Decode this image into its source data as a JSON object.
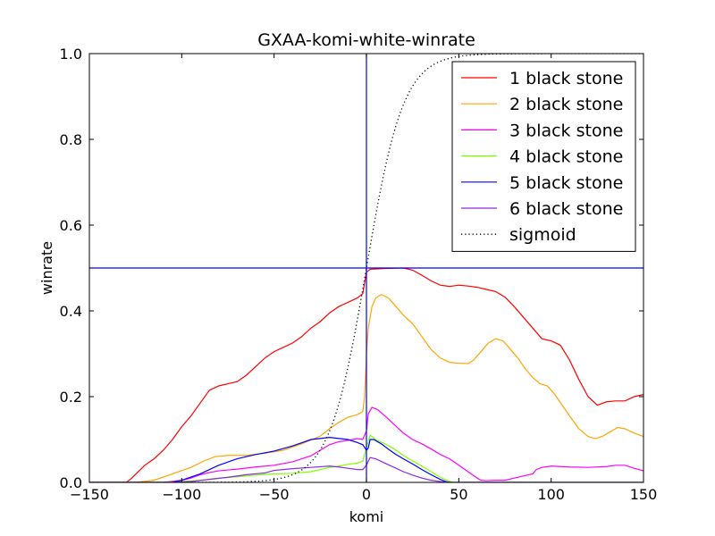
{
  "chart_data": {
    "type": "line",
    "title": "GXAA-komi-white-winrate",
    "xlabel": "komi",
    "ylabel": "winrate",
    "xlim": [
      -150,
      150
    ],
    "ylim": [
      0,
      1
    ],
    "x_ticks": [
      "−150",
      "−100",
      "−50",
      "0",
      "50",
      "100",
      "150"
    ],
    "y_ticks": [
      "0.0",
      "0.2",
      "0.4",
      "0.6",
      "0.8",
      "1.0"
    ],
    "grid": false,
    "legend_position": "top-right",
    "reference_lines": [
      {
        "orientation": "vertical",
        "value": 0,
        "color": "#0000ff"
      },
      {
        "orientation": "horizontal",
        "value": 0.5,
        "color": "#0000ff"
      }
    ],
    "series": [
      {
        "name": "1 black stone",
        "color": "#ff0000",
        "style": "solid",
        "points": [
          [
            -150,
            0
          ],
          [
            -130,
            0
          ],
          [
            -127,
            0.01
          ],
          [
            -120,
            0.04
          ],
          [
            -115,
            0.055
          ],
          [
            -110,
            0.075
          ],
          [
            -105,
            0.1
          ],
          [
            -100,
            0.13
          ],
          [
            -95,
            0.155
          ],
          [
            -90,
            0.185
          ],
          [
            -85,
            0.215
          ],
          [
            -80,
            0.225
          ],
          [
            -75,
            0.23
          ],
          [
            -70,
            0.235
          ],
          [
            -65,
            0.25
          ],
          [
            -60,
            0.27
          ],
          [
            -55,
            0.29
          ],
          [
            -50,
            0.305
          ],
          [
            -45,
            0.315
          ],
          [
            -40,
            0.325
          ],
          [
            -35,
            0.34
          ],
          [
            -30,
            0.36
          ],
          [
            -25,
            0.375
          ],
          [
            -20,
            0.395
          ],
          [
            -15,
            0.41
          ],
          [
            -10,
            0.42
          ],
          [
            -5,
            0.43
          ],
          [
            -2,
            0.44
          ],
          [
            0,
            0.49
          ],
          [
            2,
            0.497
          ],
          [
            10,
            0.499
          ],
          [
            20,
            0.5
          ],
          [
            25,
            0.495
          ],
          [
            30,
            0.483
          ],
          [
            35,
            0.47
          ],
          [
            40,
            0.46
          ],
          [
            45,
            0.457
          ],
          [
            50,
            0.46
          ],
          [
            55,
            0.458
          ],
          [
            60,
            0.455
          ],
          [
            65,
            0.45
          ],
          [
            70,
            0.445
          ],
          [
            75,
            0.432
          ],
          [
            80,
            0.41
          ],
          [
            85,
            0.385
          ],
          [
            90,
            0.36
          ],
          [
            95,
            0.335
          ],
          [
            100,
            0.33
          ],
          [
            105,
            0.32
          ],
          [
            110,
            0.285
          ],
          [
            115,
            0.24
          ],
          [
            120,
            0.2
          ],
          [
            125,
            0.18
          ],
          [
            130,
            0.188
          ],
          [
            135,
            0.19
          ],
          [
            140,
            0.19
          ],
          [
            145,
            0.2
          ],
          [
            150,
            0.205
          ]
        ]
      },
      {
        "name": "2 black stone",
        "color": "#ffa500",
        "style": "solid",
        "points": [
          [
            -150,
            0
          ],
          [
            -125,
            0
          ],
          [
            -115,
            0.005
          ],
          [
            -105,
            0.02
          ],
          [
            -95,
            0.035
          ],
          [
            -88,
            0.05
          ],
          [
            -82,
            0.06
          ],
          [
            -75,
            0.063
          ],
          [
            -65,
            0.063
          ],
          [
            -55,
            0.068
          ],
          [
            -45,
            0.075
          ],
          [
            -35,
            0.09
          ],
          [
            -25,
            0.108
          ],
          [
            -20,
            0.125
          ],
          [
            -15,
            0.14
          ],
          [
            -10,
            0.152
          ],
          [
            -5,
            0.158
          ],
          [
            -2,
            0.165
          ],
          [
            -1,
            0.2
          ],
          [
            0,
            0.3
          ],
          [
            1,
            0.36
          ],
          [
            3,
            0.41
          ],
          [
            5,
            0.43
          ],
          [
            8,
            0.438
          ],
          [
            12,
            0.43
          ],
          [
            16,
            0.41
          ],
          [
            20,
            0.39
          ],
          [
            25,
            0.37
          ],
          [
            30,
            0.34
          ],
          [
            35,
            0.31
          ],
          [
            40,
            0.29
          ],
          [
            45,
            0.28
          ],
          [
            50,
            0.278
          ],
          [
            55,
            0.277
          ],
          [
            58,
            0.285
          ],
          [
            62,
            0.305
          ],
          [
            66,
            0.325
          ],
          [
            70,
            0.335
          ],
          [
            74,
            0.33
          ],
          [
            78,
            0.31
          ],
          [
            82,
            0.29
          ],
          [
            86,
            0.265
          ],
          [
            90,
            0.245
          ],
          [
            94,
            0.23
          ],
          [
            98,
            0.225
          ],
          [
            102,
            0.205
          ],
          [
            106,
            0.18
          ],
          [
            110,
            0.155
          ],
          [
            115,
            0.125
          ],
          [
            120,
            0.107
          ],
          [
            124,
            0.102
          ],
          [
            128,
            0.108
          ],
          [
            132,
            0.118
          ],
          [
            136,
            0.128
          ],
          [
            140,
            0.125
          ],
          [
            145,
            0.115
          ],
          [
            150,
            0.107
          ]
        ]
      },
      {
        "name": "3 black stone",
        "color": "#ff00ff",
        "style": "solid",
        "points": [
          [
            -150,
            0
          ],
          [
            -110,
            0
          ],
          [
            -100,
            0.005
          ],
          [
            -95,
            0.01
          ],
          [
            -90,
            0.018
          ],
          [
            -85,
            0.023
          ],
          [
            -80,
            0.027
          ],
          [
            -70,
            0.031
          ],
          [
            -60,
            0.036
          ],
          [
            -50,
            0.04
          ],
          [
            -40,
            0.048
          ],
          [
            -30,
            0.062
          ],
          [
            -25,
            0.075
          ],
          [
            -20,
            0.088
          ],
          [
            -15,
            0.095
          ],
          [
            -10,
            0.098
          ],
          [
            -5,
            0.102
          ],
          [
            -2,
            0.1
          ],
          [
            0,
            0.12
          ],
          [
            1,
            0.16
          ],
          [
            3,
            0.175
          ],
          [
            6,
            0.17
          ],
          [
            10,
            0.155
          ],
          [
            15,
            0.135
          ],
          [
            20,
            0.115
          ],
          [
            25,
            0.1
          ],
          [
            30,
            0.09
          ],
          [
            35,
            0.078
          ],
          [
            40,
            0.065
          ],
          [
            45,
            0.055
          ],
          [
            50,
            0.04
          ],
          [
            55,
            0.025
          ],
          [
            60,
            0.01
          ],
          [
            62,
            0.005
          ],
          [
            65,
            0.004
          ],
          [
            70,
            0.005
          ],
          [
            75,
            0.005
          ],
          [
            80,
            0.01
          ],
          [
            85,
            0.015
          ],
          [
            90,
            0.02
          ],
          [
            92,
            0.03
          ],
          [
            95,
            0.035
          ],
          [
            100,
            0.038
          ],
          [
            110,
            0.036
          ],
          [
            120,
            0.035
          ],
          [
            130,
            0.037
          ],
          [
            135,
            0.04
          ],
          [
            140,
            0.04
          ],
          [
            145,
            0.033
          ],
          [
            150,
            0.027
          ]
        ]
      },
      {
        "name": "4 black stone",
        "color": "#7fff00",
        "style": "solid",
        "points": [
          [
            -150,
            0
          ],
          [
            -110,
            0
          ],
          [
            -100,
            0.002
          ],
          [
            -90,
            0.005
          ],
          [
            -80,
            0.01
          ],
          [
            -70,
            0.013
          ],
          [
            -60,
            0.017
          ],
          [
            -50,
            0.02
          ],
          [
            -40,
            0.021
          ],
          [
            -30,
            0.025
          ],
          [
            -20,
            0.035
          ],
          [
            -15,
            0.038
          ],
          [
            -10,
            0.042
          ],
          [
            -5,
            0.045
          ],
          [
            -2,
            0.05
          ],
          [
            0,
            0.08
          ],
          [
            2,
            0.11
          ],
          [
            5,
            0.1
          ],
          [
            10,
            0.09
          ],
          [
            15,
            0.078
          ],
          [
            20,
            0.063
          ],
          [
            25,
            0.05
          ],
          [
            30,
            0.038
          ],
          [
            35,
            0.025
          ],
          [
            40,
            0.012
          ],
          [
            44,
            0.004
          ],
          [
            47,
            0
          ],
          [
            150,
            0
          ]
        ]
      },
      {
        "name": "5 black stone",
        "color": "#0000ff",
        "style": "solid",
        "points": [
          [
            -150,
            0
          ],
          [
            -105,
            0
          ],
          [
            -100,
            0.005
          ],
          [
            -90,
            0.02
          ],
          [
            -80,
            0.04
          ],
          [
            -70,
            0.055
          ],
          [
            -60,
            0.065
          ],
          [
            -50,
            0.073
          ],
          [
            -40,
            0.085
          ],
          [
            -30,
            0.1
          ],
          [
            -20,
            0.105
          ],
          [
            -10,
            0.1
          ],
          [
            -5,
            0.093
          ],
          [
            -2,
            0.088
          ],
          [
            0,
            0.075
          ],
          [
            1,
            0.08
          ],
          [
            2,
            0.1
          ],
          [
            4,
            0.1
          ],
          [
            8,
            0.09
          ],
          [
            12,
            0.077
          ],
          [
            16,
            0.065
          ],
          [
            20,
            0.055
          ],
          [
            25,
            0.043
          ],
          [
            30,
            0.03
          ],
          [
            35,
            0.018
          ],
          [
            40,
            0.007
          ],
          [
            43,
            0.002
          ],
          [
            45,
            0
          ],
          [
            150,
            0
          ]
        ]
      },
      {
        "name": "6 black stone",
        "color": "#8b2be2",
        "style": "solid",
        "points": [
          [
            -150,
            0
          ],
          [
            -105,
            0
          ],
          [
            -95,
            0.002
          ],
          [
            -85,
            0.007
          ],
          [
            -75,
            0.012
          ],
          [
            -65,
            0.018
          ],
          [
            -55,
            0.022
          ],
          [
            -50,
            0.028
          ],
          [
            -45,
            0.03
          ],
          [
            -40,
            0.032
          ],
          [
            -30,
            0.035
          ],
          [
            -20,
            0.038
          ],
          [
            -15,
            0.036
          ],
          [
            -10,
            0.033
          ],
          [
            -5,
            0.03
          ],
          [
            -2,
            0.03
          ],
          [
            0,
            0.04
          ],
          [
            2,
            0.058
          ],
          [
            5,
            0.055
          ],
          [
            10,
            0.045
          ],
          [
            15,
            0.035
          ],
          [
            20,
            0.025
          ],
          [
            25,
            0.017
          ],
          [
            30,
            0.01
          ],
          [
            35,
            0.005
          ],
          [
            40,
            0.002
          ],
          [
            45,
            0
          ],
          [
            150,
            0
          ]
        ]
      },
      {
        "name": "sigmoid",
        "color": "#000000",
        "style": "dotted",
        "function": "sigmoid",
        "scale": 10
      }
    ]
  }
}
